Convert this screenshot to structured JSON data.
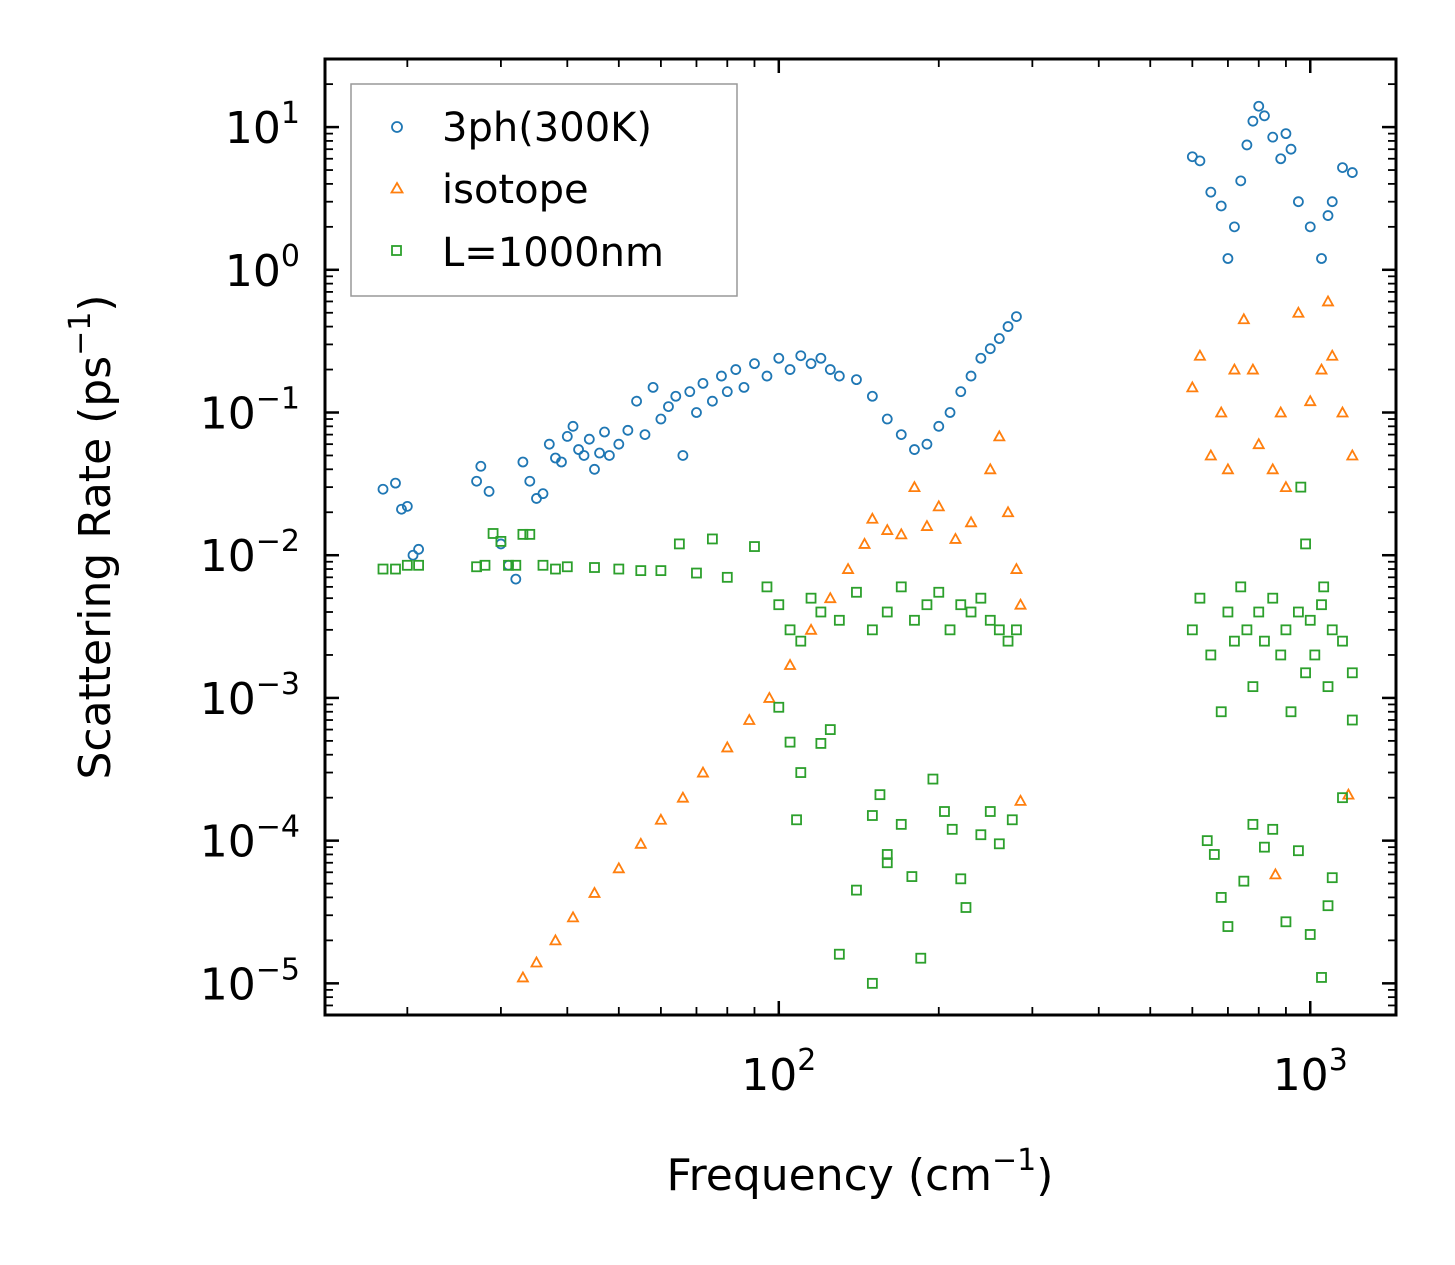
{
  "chart_data": {
    "type": "scatter",
    "x_scale": "log",
    "y_scale": "log",
    "xlim": [
      14,
      1450
    ],
    "ylim": [
      6e-06,
      30
    ],
    "xlabel": {
      "text": "Frequency (cm",
      "sup": "−1",
      "tail": ")"
    },
    "ylabel": {
      "text": "Scattering Rate (ps",
      "sup": "−1",
      "tail": ")"
    },
    "x_ticks": [
      {
        "base": "10",
        "exp": "2",
        "value": 100
      },
      {
        "base": "10",
        "exp": "3",
        "value": 1000
      }
    ],
    "y_ticks": [
      {
        "base": "10",
        "exp": "1",
        "value": 10
      },
      {
        "base": "10",
        "exp": "0",
        "value": 1
      },
      {
        "base": "10",
        "exp": "−1",
        "value": 0.1
      },
      {
        "base": "10",
        "exp": "−2",
        "value": 0.01
      },
      {
        "base": "10",
        "exp": "−3",
        "value": 0.001
      },
      {
        "base": "10",
        "exp": "−4",
        "value": 0.0001
      },
      {
        "base": "10",
        "exp": "−5",
        "value": 1e-05
      }
    ],
    "legend_position": "top-left",
    "series": [
      {
        "name": "3ph(300K)",
        "marker": "circle",
        "color": "#1f77b4",
        "points": [
          [
            18,
            0.029
          ],
          [
            19,
            0.032
          ],
          [
            19.5,
            0.021
          ],
          [
            20,
            0.022
          ],
          [
            20.5,
            0.01
          ],
          [
            21,
            0.011
          ],
          [
            27,
            0.033
          ],
          [
            27.5,
            0.042
          ],
          [
            28.5,
            0.028
          ],
          [
            30,
            0.012
          ],
          [
            31,
            0.0085
          ],
          [
            32,
            0.0068
          ],
          [
            33,
            0.045
          ],
          [
            34,
            0.033
          ],
          [
            35,
            0.025
          ],
          [
            36,
            0.027
          ],
          [
            37,
            0.06
          ],
          [
            38,
            0.048
          ],
          [
            39,
            0.045
          ],
          [
            40,
            0.068
          ],
          [
            41,
            0.08
          ],
          [
            42,
            0.055
          ],
          [
            43,
            0.05
          ],
          [
            44,
            0.065
          ],
          [
            45,
            0.04
          ],
          [
            46,
            0.052
          ],
          [
            47,
            0.073
          ],
          [
            48,
            0.05
          ],
          [
            50,
            0.06
          ],
          [
            52,
            0.075
          ],
          [
            54,
            0.12
          ],
          [
            56,
            0.07
          ],
          [
            58,
            0.15
          ],
          [
            60,
            0.09
          ],
          [
            62,
            0.11
          ],
          [
            64,
            0.13
          ],
          [
            66,
            0.05
          ],
          [
            68,
            0.14
          ],
          [
            70,
            0.1
          ],
          [
            72,
            0.16
          ],
          [
            75,
            0.12
          ],
          [
            78,
            0.18
          ],
          [
            80,
            0.14
          ],
          [
            83,
            0.2
          ],
          [
            86,
            0.15
          ],
          [
            90,
            0.22
          ],
          [
            95,
            0.18
          ],
          [
            100,
            0.24
          ],
          [
            105,
            0.2
          ],
          [
            110,
            0.25
          ],
          [
            115,
            0.22
          ],
          [
            120,
            0.24
          ],
          [
            125,
            0.2
          ],
          [
            130,
            0.18
          ],
          [
            140,
            0.17
          ],
          [
            150,
            0.13
          ],
          [
            160,
            0.09
          ],
          [
            170,
            0.07
          ],
          [
            180,
            0.055
          ],
          [
            190,
            0.06
          ],
          [
            200,
            0.08
          ],
          [
            210,
            0.1
          ],
          [
            220,
            0.14
          ],
          [
            230,
            0.18
          ],
          [
            240,
            0.24
          ],
          [
            250,
            0.28
          ],
          [
            260,
            0.33
          ],
          [
            270,
            0.4
          ],
          [
            280,
            0.47
          ],
          [
            600,
            6.2
          ],
          [
            620,
            5.8
          ],
          [
            650,
            3.5
          ],
          [
            680,
            2.8
          ],
          [
            700,
            1.2
          ],
          [
            720,
            2.0
          ],
          [
            740,
            4.2
          ],
          [
            760,
            7.5
          ],
          [
            780,
            11
          ],
          [
            800,
            14
          ],
          [
            820,
            12
          ],
          [
            850,
            8.5
          ],
          [
            880,
            6
          ],
          [
            900,
            9
          ],
          [
            920,
            7
          ],
          [
            950,
            3
          ],
          [
            1000,
            2
          ],
          [
            1050,
            1.2
          ],
          [
            1080,
            2.4
          ],
          [
            1100,
            3
          ],
          [
            1150,
            5.2
          ],
          [
            1200,
            4.8
          ]
        ]
      },
      {
        "name": "isotope",
        "marker": "triangle",
        "color": "#ff7f0e",
        "points": [
          [
            33,
            1.1e-05
          ],
          [
            35,
            1.4e-05
          ],
          [
            38,
            2e-05
          ],
          [
            41,
            2.9e-05
          ],
          [
            45,
            4.3e-05
          ],
          [
            50,
            6.4e-05
          ],
          [
            55,
            9.5e-05
          ],
          [
            60,
            0.00014
          ],
          [
            66,
            0.0002
          ],
          [
            72,
            0.0003
          ],
          [
            80,
            0.00045
          ],
          [
            88,
            0.0007
          ],
          [
            96,
            0.001
          ],
          [
            105,
            0.0017
          ],
          [
            115,
            0.003
          ],
          [
            125,
            0.005
          ],
          [
            135,
            0.008
          ],
          [
            145,
            0.012
          ],
          [
            150,
            0.018
          ],
          [
            160,
            0.015
          ],
          [
            170,
            0.014
          ],
          [
            180,
            0.03
          ],
          [
            190,
            0.016
          ],
          [
            200,
            0.022
          ],
          [
            215,
            0.013
          ],
          [
            230,
            0.017
          ],
          [
            250,
            0.04
          ],
          [
            260,
            0.068
          ],
          [
            270,
            0.02
          ],
          [
            280,
            0.008
          ],
          [
            285,
            0.0045
          ],
          [
            285,
            0.00019
          ],
          [
            600,
            0.15
          ],
          [
            620,
            0.25
          ],
          [
            650,
            0.05
          ],
          [
            680,
            0.1
          ],
          [
            700,
            0.04
          ],
          [
            720,
            0.2
          ],
          [
            750,
            0.45
          ],
          [
            780,
            0.2
          ],
          [
            800,
            0.06
          ],
          [
            850,
            0.04
          ],
          [
            880,
            0.1
          ],
          [
            900,
            0.03
          ],
          [
            950,
            0.5
          ],
          [
            1000,
            0.12
          ],
          [
            1050,
            0.2
          ],
          [
            1080,
            0.6
          ],
          [
            1100,
            0.25
          ],
          [
            1150,
            0.1
          ],
          [
            1200,
            0.05
          ],
          [
            860,
            5.8e-05
          ],
          [
            1180,
            0.00021
          ]
        ]
      },
      {
        "name": "L=1000nm",
        "marker": "square",
        "color": "#2ca02c",
        "points": [
          [
            18,
            0.008
          ],
          [
            19,
            0.008
          ],
          [
            20,
            0.0085
          ],
          [
            21,
            0.0085
          ],
          [
            27,
            0.0083
          ],
          [
            28,
            0.0085
          ],
          [
            29,
            0.0142
          ],
          [
            30,
            0.0125
          ],
          [
            31,
            0.0085
          ],
          [
            32,
            0.0085
          ],
          [
            33,
            0.014
          ],
          [
            34,
            0.014
          ],
          [
            36,
            0.0085
          ],
          [
            38,
            0.008
          ],
          [
            40,
            0.0083
          ],
          [
            45,
            0.0082
          ],
          [
            50,
            0.008
          ],
          [
            55,
            0.0078
          ],
          [
            60,
            0.0078
          ],
          [
            65,
            0.012
          ],
          [
            70,
            0.0075
          ],
          [
            75,
            0.013
          ],
          [
            80,
            0.007
          ],
          [
            90,
            0.0115
          ],
          [
            95,
            0.006
          ],
          [
            100,
            0.0045
          ],
          [
            105,
            0.003
          ],
          [
            110,
            0.0025
          ],
          [
            115,
            0.005
          ],
          [
            120,
            0.004
          ],
          [
            130,
            0.0035
          ],
          [
            140,
            0.0055
          ],
          [
            150,
            0.003
          ],
          [
            160,
            0.004
          ],
          [
            170,
            0.006
          ],
          [
            180,
            0.0035
          ],
          [
            190,
            0.0045
          ],
          [
            200,
            0.0055
          ],
          [
            210,
            0.003
          ],
          [
            220,
            0.0045
          ],
          [
            230,
            0.004
          ],
          [
            240,
            0.005
          ],
          [
            250,
            0.0035
          ],
          [
            260,
            0.003
          ],
          [
            270,
            0.0025
          ],
          [
            280,
            0.003
          ],
          [
            100,
            0.00086
          ],
          [
            105,
            0.00049
          ],
          [
            108,
            0.00014
          ],
          [
            120,
            0.00048
          ],
          [
            125,
            0.0006
          ],
          [
            130,
            1.6e-05
          ],
          [
            140,
            4.5e-05
          ],
          [
            150,
            0.00015
          ],
          [
            155,
            0.00021
          ],
          [
            160,
            7e-05
          ],
          [
            170,
            0.00013
          ],
          [
            178,
            5.6e-05
          ],
          [
            185,
            1.5e-05
          ],
          [
            195,
            0.00027
          ],
          [
            205,
            0.00016
          ],
          [
            212,
            0.00012
          ],
          [
            220,
            5.4e-05
          ],
          [
            225,
            3.4e-05
          ],
          [
            240,
            0.00011
          ],
          [
            250,
            0.00016
          ],
          [
            260,
            9.5e-05
          ],
          [
            275,
            0.00014
          ],
          [
            150,
            1e-05
          ],
          [
            160,
            8e-05
          ],
          [
            110,
            0.0003
          ],
          [
            600,
            0.003
          ],
          [
            620,
            0.005
          ],
          [
            650,
            0.002
          ],
          [
            680,
            0.0008
          ],
          [
            700,
            0.004
          ],
          [
            720,
            0.0025
          ],
          [
            740,
            0.006
          ],
          [
            760,
            0.003
          ],
          [
            780,
            0.0012
          ],
          [
            800,
            0.004
          ],
          [
            820,
            0.0025
          ],
          [
            850,
            0.005
          ],
          [
            880,
            0.002
          ],
          [
            900,
            0.003
          ],
          [
            920,
            0.0008
          ],
          [
            950,
            0.004
          ],
          [
            980,
            0.0015
          ],
          [
            1000,
            0.0035
          ],
          [
            1020,
            0.002
          ],
          [
            1050,
            0.0045
          ],
          [
            1080,
            0.0012
          ],
          [
            1100,
            0.003
          ],
          [
            1150,
            0.0025
          ],
          [
            1200,
            0.0015
          ],
          [
            640,
            0.0001
          ],
          [
            660,
            8e-05
          ],
          [
            680,
            4e-05
          ],
          [
            700,
            2.5e-05
          ],
          [
            750,
            5.2e-05
          ],
          [
            780,
            0.00013
          ],
          [
            820,
            9e-05
          ],
          [
            850,
            0.00012
          ],
          [
            900,
            2.7e-05
          ],
          [
            950,
            8.5e-05
          ],
          [
            1000,
            2.2e-05
          ],
          [
            1050,
            1.1e-05
          ],
          [
            1080,
            3.5e-05
          ],
          [
            1100,
            5.5e-05
          ],
          [
            1150,
            0.0002
          ],
          [
            1200,
            0.0007
          ],
          [
            960,
            0.03
          ],
          [
            980,
            0.012
          ],
          [
            1060,
            0.006
          ]
        ]
      }
    ]
  }
}
